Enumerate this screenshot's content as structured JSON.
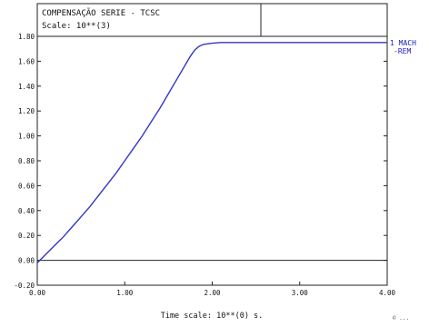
{
  "window": {
    "title": "COMPENSAÇÃO SERIE - TCSC",
    "scale_label": "Scale: 10**(3)",
    "footer_mark": "© ..."
  },
  "legend": {
    "line1": "1 MACH",
    "line2": "-REM"
  },
  "colors": {
    "frame": "#222222",
    "curve": "#3535c8",
    "legend": "#2020c0",
    "zero_line": "#222222"
  },
  "chart_data": {
    "type": "line",
    "title": "COMPENSAÇÃO SERIE - TCSC",
    "subtitle": "Scale: 10**(3)",
    "xlabel": "Time scale: 10**(0) s.",
    "ylabel": "",
    "xlim": [
      0,
      4
    ],
    "ylim": [
      -0.2,
      1.8
    ],
    "x_ticks": [
      "0.00",
      "1.00",
      "2.00",
      "3.00",
      "4.00"
    ],
    "y_ticks": [
      "-0.20",
      "0.00",
      "0.20",
      "0.40",
      "0.60",
      "0.80",
      "1.00",
      "1.20",
      "1.40",
      "1.60",
      "1.80"
    ],
    "grid": false,
    "legend_position": "right",
    "series": [
      {
        "name": "1 MACH -REM",
        "x": [
          0.0,
          0.1,
          0.2,
          0.3,
          0.4,
          0.5,
          0.6,
          0.7,
          0.8,
          0.9,
          1.0,
          1.1,
          1.2,
          1.3,
          1.4,
          1.5,
          1.6,
          1.7,
          1.75,
          1.8,
          1.85,
          1.9,
          1.95,
          2.0,
          2.1,
          2.5,
          3.0,
          3.5,
          4.0
        ],
        "y": [
          -0.02,
          0.05,
          0.12,
          0.19,
          0.27,
          0.35,
          0.43,
          0.52,
          0.61,
          0.7,
          0.8,
          0.9,
          1.0,
          1.11,
          1.22,
          1.34,
          1.46,
          1.58,
          1.64,
          1.69,
          1.72,
          1.735,
          1.74,
          1.745,
          1.75,
          1.75,
          1.75,
          1.75,
          1.75
        ]
      }
    ]
  }
}
